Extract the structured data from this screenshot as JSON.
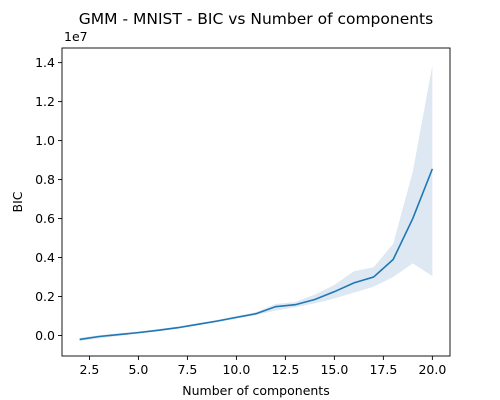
{
  "chart_data": {
    "type": "line",
    "title": "GMM - MNIST - BIC vs Number of components",
    "xlabel": "Number of components",
    "ylabel": "BIC",
    "y_offset_label": "1e7",
    "xlim": [
      1.1,
      20.9
    ],
    "ylim": [
      -0.105,
      1.475
    ],
    "grid": false,
    "x_ticks": [
      2.5,
      5.0,
      7.5,
      10.0,
      12.5,
      15.0,
      17.5,
      20.0
    ],
    "x_tick_labels": [
      "2.5",
      "5.0",
      "7.5",
      "10.0",
      "12.5",
      "15.0",
      "17.5",
      "20.0"
    ],
    "y_ticks": [
      0.0,
      0.2,
      0.4,
      0.6,
      0.8,
      1.0,
      1.2,
      1.4
    ],
    "y_tick_labels": [
      "0.0",
      "0.2",
      "0.4",
      "0.6",
      "0.8",
      "1.0",
      "1.2",
      "1.4"
    ],
    "series": [
      {
        "color": "#1f77b4",
        "band_color": "#dde8f3",
        "x": [
          2,
          3,
          4,
          5,
          6,
          7,
          8,
          9,
          10,
          11,
          12,
          13,
          14,
          15,
          16,
          17,
          18,
          19,
          20
        ],
        "y": [
          -0.02,
          -0.005,
          0.005,
          0.015,
          0.027,
          0.04,
          0.057,
          0.074,
          0.093,
          0.112,
          0.148,
          0.158,
          0.185,
          0.225,
          0.27,
          0.3,
          0.39,
          0.6,
          0.855
        ],
        "y_lower": [
          -0.028,
          -0.015,
          -0.002,
          0.01,
          0.022,
          0.035,
          0.052,
          0.068,
          0.087,
          0.105,
          0.128,
          0.145,
          0.165,
          0.19,
          0.22,
          0.25,
          0.3,
          0.37,
          0.305
        ],
        "y_upper": [
          -0.012,
          0.002,
          0.012,
          0.022,
          0.033,
          0.046,
          0.063,
          0.08,
          0.1,
          0.12,
          0.162,
          0.172,
          0.21,
          0.26,
          0.33,
          0.35,
          0.47,
          0.84,
          1.385
        ]
      }
    ]
  }
}
